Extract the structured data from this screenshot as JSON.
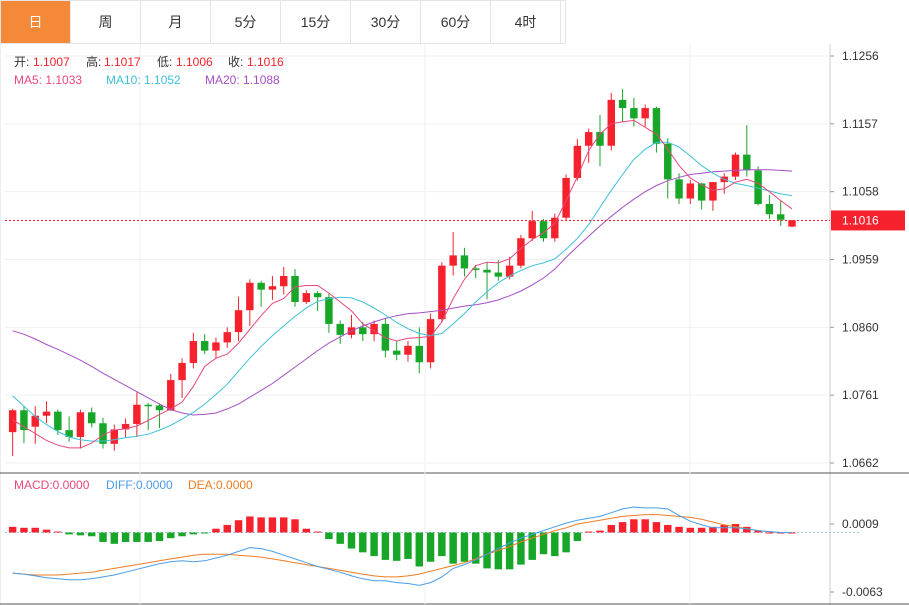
{
  "tabs": [
    {
      "label": "日",
      "active": true
    },
    {
      "label": "周"
    },
    {
      "label": "月"
    },
    {
      "label": "5分"
    },
    {
      "label": "15分"
    },
    {
      "label": "30分"
    },
    {
      "label": "60分"
    },
    {
      "label": "4时"
    }
  ],
  "colors": {
    "up": "#f5222d",
    "down": "#18a629",
    "accent": "#f5893a",
    "ma5": "#e8477a",
    "ma10": "#3ec1d8",
    "ma20": "#a64fc3",
    "dif": "#4a9de8",
    "dea": "#f07c22"
  },
  "ohlc_info": {
    "open_label": "开:",
    "open": "1.1007",
    "high_label": "高:",
    "high": "1.1017",
    "low_label": "低:",
    "low": "1.1006",
    "close_label": "收:",
    "close": "1.1016"
  },
  "ma_info": {
    "ma5": "MA5: 1.1033",
    "ma10": "MA10: 1.1052",
    "ma20": "MA20: 1.1088"
  },
  "macd_info": {
    "macd": "MACD:0.0000",
    "diff": "DIFF:0.0000",
    "dea": "DEA:0.0000"
  },
  "chart_data": [
    {
      "type": "candlestick",
      "y_ticks": [
        "1.1256",
        "1.1157",
        "1.1058",
        "1.0959",
        "1.0860",
        "1.0761",
        "1.0662"
      ],
      "ylim": [
        1.0662,
        1.1256
      ],
      "last_price": "1.1016",
      "candles": [
        [
          1.0707,
          1.0741,
          1.0672,
          1.0739
        ],
        [
          1.0739,
          1.0745,
          1.0691,
          1.071
        ],
        [
          1.0715,
          1.0745,
          1.069,
          1.0731
        ],
        [
          1.0731,
          1.0752,
          1.072,
          1.0737
        ],
        [
          1.0737,
          1.074,
          1.0703,
          1.071
        ],
        [
          1.071,
          1.073,
          1.0693,
          1.07
        ],
        [
          1.07,
          1.074,
          1.0683,
          1.0736
        ],
        [
          1.0736,
          1.0743,
          1.0714,
          1.072
        ],
        [
          1.072,
          1.0728,
          1.0683,
          1.069
        ],
        [
          1.069,
          1.0718,
          1.068,
          1.0711
        ],
        [
          1.0711,
          1.0727,
          1.07,
          1.0719
        ],
        [
          1.0719,
          1.0765,
          1.07,
          1.0747
        ],
        [
          1.0747,
          1.075,
          1.071,
          1.0746
        ],
        [
          1.0746,
          1.0749,
          1.0713,
          1.0739
        ],
        [
          1.0739,
          1.0792,
          1.0738,
          1.0783
        ],
        [
          1.0783,
          1.0815,
          1.0757,
          1.0808
        ],
        [
          1.0808,
          1.0852,
          1.08,
          1.084
        ],
        [
          1.084,
          1.085,
          1.0821,
          1.0826
        ],
        [
          1.0826,
          1.0845,
          1.0815,
          1.0838
        ],
        [
          1.0838,
          1.086,
          1.083,
          1.0853
        ],
        [
          1.0853,
          1.0905,
          1.084,
          1.0885
        ],
        [
          1.0885,
          1.093,
          1.0862,
          1.0925
        ],
        [
          1.0925,
          1.0928,
          1.089,
          1.0915
        ],
        [
          1.0915,
          1.0935,
          1.09,
          1.092
        ],
        [
          1.092,
          1.0948,
          1.0908,
          1.0935
        ],
        [
          1.0935,
          1.0945,
          1.089,
          1.0897
        ],
        [
          1.0897,
          1.0914,
          1.0894,
          1.091
        ],
        [
          1.091,
          1.0913,
          1.0884,
          1.0904
        ],
        [
          1.0904,
          1.0909,
          1.0852,
          1.0865
        ],
        [
          1.0865,
          1.087,
          1.0836,
          1.0849
        ],
        [
          1.0849,
          1.0878,
          1.0844,
          1.086
        ],
        [
          1.086,
          1.0868,
          1.084,
          1.085
        ],
        [
          1.085,
          1.087,
          1.084,
          1.0865
        ],
        [
          1.0865,
          1.0873,
          1.0816,
          1.0826
        ],
        [
          1.0826,
          1.084,
          1.0812,
          1.082
        ],
        [
          1.082,
          1.084,
          1.081,
          1.0833
        ],
        [
          1.0833,
          1.086,
          1.0793,
          1.0809
        ],
        [
          1.0809,
          1.088,
          1.08,
          1.0872
        ],
        [
          1.0872,
          1.0955,
          1.0867,
          1.095
        ],
        [
          1.095,
          1.0999,
          1.0936,
          1.0965
        ],
        [
          1.0965,
          1.0976,
          1.0934,
          1.0946
        ],
        [
          1.0946,
          1.0951,
          1.0932,
          1.0944
        ],
        [
          1.0944,
          1.0955,
          1.0901,
          1.094
        ],
        [
          1.094,
          1.0958,
          1.0928,
          1.0934
        ],
        [
          1.0934,
          1.0963,
          1.093,
          1.095
        ],
        [
          1.095,
          1.0995,
          1.0946,
          1.099
        ],
        [
          1.099,
          1.103,
          1.0986,
          1.1015
        ],
        [
          1.1015,
          1.1018,
          1.0985,
          1.099
        ],
        [
          1.099,
          1.1026,
          1.0985,
          1.102
        ],
        [
          1.102,
          1.1083,
          1.1015,
          1.1078
        ],
        [
          1.1078,
          1.1135,
          1.1074,
          1.1125
        ],
        [
          1.1125,
          1.115,
          1.11,
          1.1145
        ],
        [
          1.1145,
          1.117,
          1.1095,
          1.1125
        ],
        [
          1.1125,
          1.1202,
          1.1118,
          1.1192
        ],
        [
          1.1192,
          1.1208,
          1.116,
          1.118
        ],
        [
          1.118,
          1.1195,
          1.1153,
          1.1165
        ],
        [
          1.1165,
          1.1185,
          1.1153,
          1.118
        ],
        [
          1.118,
          1.1182,
          1.1115,
          1.1128
        ],
        [
          1.1128,
          1.1136,
          1.1048,
          1.1076
        ],
        [
          1.1076,
          1.1085,
          1.104,
          1.1048
        ],
        [
          1.1048,
          1.1075,
          1.104,
          1.107
        ],
        [
          1.107,
          1.1071,
          1.1032,
          1.1045
        ],
        [
          1.1045,
          1.1068,
          1.103,
          1.1072
        ],
        [
          1.1072,
          1.1085,
          1.1055,
          1.108
        ],
        [
          1.108,
          1.1115,
          1.1075,
          1.1112
        ],
        [
          1.1112,
          1.1155,
          1.108,
          1.1089
        ],
        [
          1.1089,
          1.1095,
          1.1038,
          1.104
        ],
        [
          1.104,
          1.1053,
          1.1018,
          1.1025
        ],
        [
          1.1025,
          1.1045,
          1.1008,
          1.1017
        ],
        [
          1.1007,
          1.1017,
          1.1006,
          1.1016
        ]
      ],
      "ma5": [
        1.0725,
        1.0715,
        1.0705,
        1.0695,
        1.0688,
        1.0684,
        1.0684,
        1.0691,
        1.0703,
        1.071,
        1.0712,
        1.0716,
        1.0724,
        1.0733,
        1.0741,
        1.0751,
        1.0774,
        1.0803,
        1.0815,
        1.0821,
        1.0837,
        1.0857,
        1.0877,
        1.0895,
        1.0902,
        1.0919,
        1.0921,
        1.0921,
        1.091,
        1.0897,
        1.0884,
        1.0865,
        1.0855,
        1.0845,
        1.084,
        1.0844,
        1.0845,
        1.0847,
        1.0868,
        1.0902,
        1.093,
        1.095,
        1.0955,
        1.0954,
        1.096,
        1.0975,
        1.0988,
        1.0998,
        1.1012,
        1.1045,
        1.108,
        1.1118,
        1.1142,
        1.1157,
        1.116,
        1.1162,
        1.1152,
        1.1142,
        1.112,
        1.1096,
        1.1078,
        1.1068,
        1.106,
        1.1062,
        1.1072,
        1.1076,
        1.107,
        1.1058,
        1.1045,
        1.1033
      ],
      "ma10": [
        1.076,
        1.0745,
        1.073,
        1.0718,
        1.0708,
        1.07,
        1.0696,
        1.0694,
        1.0694,
        1.0696,
        1.0699,
        1.0701,
        1.0704,
        1.071,
        1.0717,
        1.0726,
        1.0736,
        1.0748,
        1.0762,
        1.0777,
        1.0796,
        1.0815,
        1.0832,
        1.0848,
        1.0862,
        1.0876,
        1.0888,
        1.0898,
        1.0902,
        1.0904,
        1.0903,
        1.0897,
        1.0888,
        1.0878,
        1.0867,
        1.0858,
        1.0851,
        1.0848,
        1.0851,
        1.0865,
        1.088,
        1.0897,
        1.0912,
        1.0925,
        1.0935,
        1.0943,
        1.095,
        1.0954,
        1.096,
        1.0974,
        1.099,
        1.101,
        1.1035,
        1.106,
        1.1083,
        1.1105,
        1.112,
        1.113,
        1.113,
        1.1123,
        1.111,
        1.1096,
        1.1085,
        1.1076,
        1.107,
        1.1067,
        1.1063,
        1.1059,
        1.1055,
        1.1052
      ],
      "ma20": [
        1.0855,
        1.085,
        1.0843,
        1.0835,
        1.0828,
        1.082,
        1.0812,
        1.0803,
        1.0793,
        1.0784,
        1.0775,
        1.0766,
        1.0757,
        1.0748,
        1.074,
        1.0735,
        1.0732,
        1.0733,
        1.0735,
        1.0741,
        1.0748,
        1.0758,
        1.0768,
        1.0778,
        1.079,
        1.0802,
        1.0814,
        1.0826,
        1.0837,
        1.0846,
        1.0855,
        1.0862,
        1.0868,
        1.0873,
        1.0877,
        1.088,
        1.0881,
        1.0883,
        1.0885,
        1.0888,
        1.0891,
        1.0893,
        1.0896,
        1.09,
        1.0906,
        1.0913,
        1.0922,
        1.0932,
        1.0945,
        1.0962,
        1.0978,
        1.0993,
        1.1008,
        1.1022,
        1.1035,
        1.1047,
        1.1058,
        1.1067,
        1.1074,
        1.1079,
        1.1083,
        1.1085,
        1.1087,
        1.1088,
        1.1089,
        1.109,
        1.109,
        1.109,
        1.1089,
        1.1088
      ]
    },
    {
      "type": "macd",
      "y_ticks": [
        "0.0009",
        "-0.0063"
      ],
      "ylim": [
        -0.0063,
        0.0009
      ],
      "hist": [
        0.0006,
        0.0005,
        0.0005,
        0.0003,
        0.0001,
        -0.0002,
        -0.0003,
        -0.0004,
        -0.001,
        -0.0012,
        -0.001,
        -0.001,
        -0.001,
        -0.0009,
        -0.0006,
        -0.0004,
        -0.0002,
        -0.0001,
        0.0004,
        0.0008,
        0.0013,
        0.0017,
        0.0016,
        0.0016,
        0.0016,
        0.0014,
        0.0004,
        0.0001,
        -0.0007,
        -0.0012,
        -0.0017,
        -0.0021,
        -0.0025,
        -0.0029,
        -0.003,
        -0.0028,
        -0.0036,
        -0.0031,
        -0.0025,
        -0.0033,
        -0.0031,
        -0.0033,
        -0.0038,
        -0.0039,
        -0.0039,
        -0.0034,
        -0.0029,
        -0.0023,
        -0.0025,
        -0.0021,
        -0.0009,
        0.0001,
        0.0002,
        0.0008,
        0.0011,
        0.0014,
        0.0014,
        0.0011,
        0.0008,
        0.0006,
        0.0005,
        0.0005,
        0.0006,
        0.0008,
        0.0009,
        0.0006,
        0.0002,
        0.0,
        0.0,
        0.0
      ],
      "diff": [
        -0.0043,
        -0.0044,
        -0.0046,
        -0.0048,
        -0.0049,
        -0.005,
        -0.005,
        -0.0049,
        -0.0047,
        -0.0045,
        -0.0042,
        -0.0039,
        -0.0036,
        -0.0033,
        -0.0031,
        -0.003,
        -0.0031,
        -0.003,
        -0.0027,
        -0.0024,
        -0.002,
        -0.0016,
        -0.0017,
        -0.002,
        -0.0024,
        -0.0028,
        -0.0032,
        -0.0036,
        -0.0039,
        -0.0042,
        -0.0046,
        -0.0049,
        -0.0051,
        -0.0051,
        -0.0053,
        -0.0054,
        -0.0056,
        -0.0053,
        -0.0047,
        -0.0038,
        -0.0034,
        -0.0029,
        -0.0023,
        -0.0017,
        -0.0011,
        -0.0006,
        -0.0002,
        0.0002,
        0.0006,
        0.001,
        0.0013,
        0.0015,
        0.0017,
        0.0021,
        0.0025,
        0.0027,
        0.0026,
        0.0026,
        0.0025,
        0.0018,
        0.0012,
        0.0008,
        0.0005,
        0.0005,
        0.0005,
        0.0004,
        0.0002,
        0.0001,
        0.0,
        0.0
      ],
      "dea": [
        -0.0043,
        -0.0044,
        -0.0045,
        -0.0045,
        -0.0045,
        -0.0044,
        -0.0043,
        -0.0042,
        -0.004,
        -0.0038,
        -0.0036,
        -0.0034,
        -0.0032,
        -0.003,
        -0.0028,
        -0.0026,
        -0.0024,
        -0.0023,
        -0.0023,
        -0.0023,
        -0.0024,
        -0.0025,
        -0.0026,
        -0.0028,
        -0.003,
        -0.0032,
        -0.0034,
        -0.0036,
        -0.0038,
        -0.004,
        -0.0042,
        -0.0044,
        -0.0046,
        -0.0047,
        -0.0047,
        -0.0046,
        -0.0044,
        -0.0041,
        -0.0038,
        -0.0035,
        -0.0032,
        -0.0028,
        -0.0023,
        -0.0019,
        -0.0015,
        -0.001,
        -0.0006,
        -0.0002,
        0.0002,
        0.0005,
        0.0009,
        0.0011,
        0.0013,
        0.0015,
        0.0017,
        0.0018,
        0.0019,
        0.0019,
        0.0018,
        0.0017,
        0.0016,
        0.0014,
        0.0011,
        0.0008,
        0.0006,
        0.0004,
        0.0002,
        0.0001,
        0.0,
        0.0
      ]
    }
  ]
}
